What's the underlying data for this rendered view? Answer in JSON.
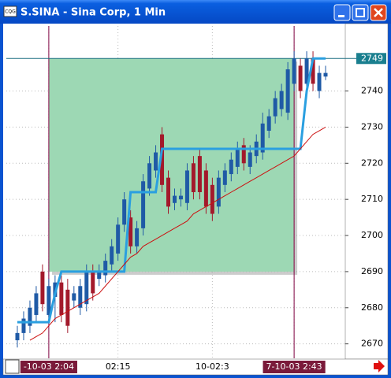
{
  "window_title": "S.SINA - Sina Corp, 1 Min",
  "chart_data": {
    "type": "candlestick",
    "categories": [
      null,
      null,
      null,
      null,
      null,
      "-10-03 2:04",
      null,
      null,
      null,
      null,
      null,
      null,
      null,
      null,
      null,
      null,
      "02:15",
      null,
      null,
      null,
      null,
      null,
      null,
      null,
      null,
      null,
      null,
      null,
      null,
      null,
      null,
      "10-02:3",
      null,
      null,
      null,
      null,
      null,
      null,
      null,
      null,
      null,
      null,
      null,
      null,
      "7-10-03 2:43",
      null,
      null,
      null,
      null,
      null
    ],
    "open": [
      2671,
      2673,
      2675,
      2678,
      2690,
      2678,
      2683,
      2687,
      2685,
      2682,
      2680,
      2681,
      2690,
      2688,
      2689,
      2692,
      2695,
      2703,
      2705,
      2697,
      2702,
      2713,
      2718,
      2728,
      2716,
      2709,
      2710,
      2709,
      2720,
      2722,
      2718,
      2714,
      2708,
      2714,
      2717,
      2719,
      2725,
      2719,
      2722,
      2723,
      2729,
      2733,
      2735,
      2734,
      2742,
      2747,
      2742,
      2749,
      2740,
      2744
    ],
    "high": [
      2675,
      2679,
      2682,
      2686,
      2692,
      2688,
      2689,
      2689,
      2688,
      2686,
      2688,
      2692,
      2692,
      2692,
      2695,
      2699,
      2705,
      2712,
      2707,
      2704,
      2717,
      2722,
      2725,
      2730,
      2718,
      2713,
      2713,
      2720,
      2722,
      2724,
      2720,
      2716,
      2718,
      2720,
      2723,
      2726,
      2727,
      2725,
      2728,
      2734,
      2735,
      2740,
      2742,
      2748,
      2751,
      2749,
      2751,
      2751,
      2747,
      2747
    ],
    "low": [
      2669,
      2671,
      2673,
      2676,
      2679,
      2676,
      2676,
      2676,
      2673,
      2680,
      2678,
      2679,
      2682,
      2686,
      2687,
      2690,
      2693,
      2701,
      2695,
      2695,
      2700,
      2711,
      2716,
      2712,
      2706,
      2707,
      2708,
      2707,
      2710,
      2710,
      2706,
      2704,
      2706,
      2712,
      2715,
      2717,
      2718,
      2717,
      2720,
      2721,
      2727,
      2731,
      2733,
      2732,
      2740,
      2738,
      2740,
      2740,
      2738,
      2743
    ],
    "close": [
      2673,
      2677,
      2680,
      2684,
      2681,
      2686,
      2687,
      2678,
      2675,
      2684,
      2686,
      2690,
      2684,
      2690,
      2693,
      2697,
      2703,
      2710,
      2697,
      2702,
      2715,
      2720,
      2723,
      2714,
      2708,
      2711,
      2711,
      2718,
      2712,
      2712,
      2708,
      2706,
      2716,
      2718,
      2721,
      2724,
      2720,
      2723,
      2726,
      2731,
      2733,
      2738,
      2740,
      2746,
      2749,
      2740,
      2749,
      2742,
      2745,
      2745
    ],
    "up_color": "#1f5aa6",
    "down_color": "#a3192b",
    "lines": [
      {
        "color": "#2a9fe0",
        "width": 3,
        "values": [
          2676,
          2676,
          2676,
          2676,
          2676,
          2676,
          2684,
          2690,
          2690,
          2690,
          2690,
          2690,
          2690,
          2690,
          2690,
          2690,
          2690,
          2690,
          2712,
          2712,
          2712,
          2712,
          2712,
          2724,
          2724,
          2724,
          2724,
          2724,
          2724,
          2724,
          2724,
          2724,
          2724,
          2724,
          2724,
          2724,
          2724,
          2724,
          2724,
          2724,
          2724,
          2724,
          2724,
          2724,
          2724,
          2724,
          2740,
          2749,
          2749,
          2749
        ]
      },
      {
        "color": "#cc1010",
        "width": 1,
        "values": [
          null,
          null,
          2671,
          2672,
          2673,
          2675,
          2677,
          2678,
          2679,
          2680,
          2681,
          2682,
          2683,
          2684,
          2686,
          2688,
          2690,
          2692,
          2694,
          2695,
          2697,
          2698,
          2699,
          2700,
          2701,
          2702,
          2703,
          2704,
          2706,
          2707,
          2708,
          2709,
          2710,
          2711,
          2712,
          2713,
          2714,
          2715,
          2716,
          2717,
          2718,
          2719,
          2720,
          2721,
          2722,
          2724,
          2726,
          2728,
          2729,
          2730
        ]
      }
    ],
    "zone": {
      "start": 5,
      "end": 44,
      "low": 2690,
      "high": 2749,
      "color": "#9dd8b4"
    },
    "last_price": 2749,
    "ylim": [
      2666,
      2758
    ],
    "yticks": [
      2670,
      2680,
      2690,
      2700,
      2710,
      2720,
      2730,
      2740
    ],
    "grid": true
  }
}
